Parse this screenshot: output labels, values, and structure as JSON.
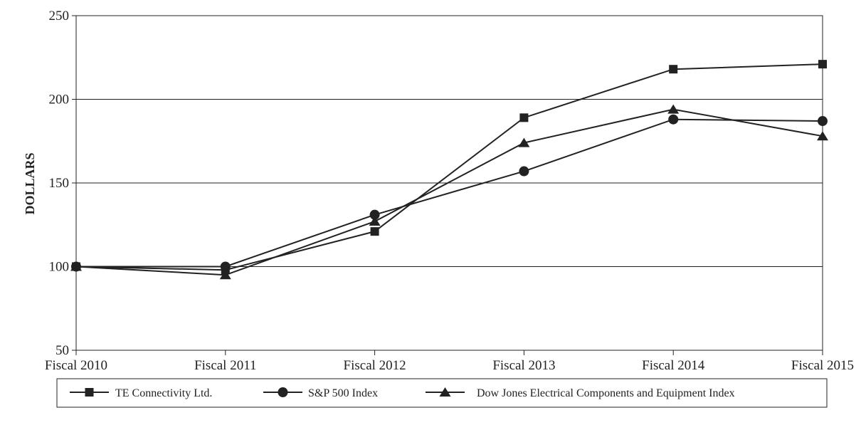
{
  "chart_data": {
    "type": "line",
    "categories": [
      "Fiscal 2010",
      "Fiscal 2011",
      "Fiscal 2012",
      "Fiscal 2013",
      "Fiscal 2014",
      "Fiscal 2015"
    ],
    "ylabel": "DOLLARS",
    "ylim": [
      50,
      250
    ],
    "yticks": [
      50,
      100,
      150,
      200,
      250
    ],
    "grid": true,
    "legend_position": "bottom",
    "series": [
      {
        "name": "TE Connectivity Ltd.",
        "marker": "square",
        "color": "#222222",
        "values": [
          100,
          98,
          121,
          189,
          218,
          221
        ]
      },
      {
        "name": "S&P 500 Index",
        "marker": "circle",
        "color": "#222222",
        "values": [
          100,
          100,
          131,
          157,
          188,
          187
        ]
      },
      {
        "name": "Dow Jones Electrical Components and Equipment Index",
        "marker": "triangle",
        "color": "#222222",
        "values": [
          100,
          95,
          127,
          174,
          194,
          178
        ]
      }
    ]
  }
}
